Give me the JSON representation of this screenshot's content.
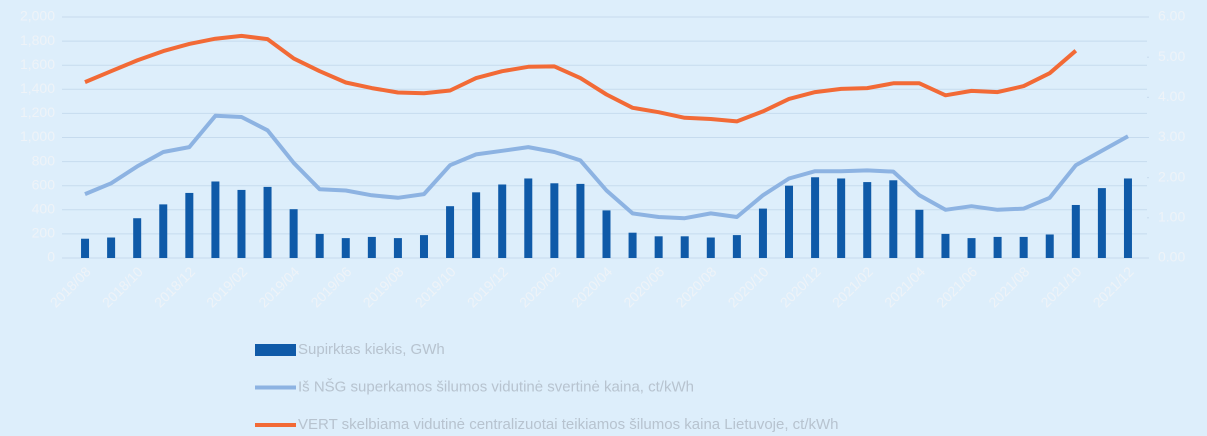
{
  "chart_data": {
    "type": "bar_line",
    "categories": [
      "2018/08",
      null,
      "2018/10",
      null,
      "2018/12",
      null,
      "2019/02",
      null,
      "2019/04",
      null,
      "2019/06",
      null,
      "2019/08",
      null,
      "2019/10",
      null,
      "2019/12",
      null,
      "2020/02",
      null,
      "2020/04",
      null,
      "2020/06",
      null,
      "2020/08",
      null,
      "2020/10",
      null,
      "2020/12",
      null,
      "2021/02",
      null,
      "2021/04",
      null,
      "2021/06",
      null,
      "2021/08",
      null,
      "2021/10",
      null,
      "2021/12"
    ],
    "series": [
      {
        "name": "Supirktas kiekis, GWh",
        "type": "bar",
        "color": "#0f5aa8",
        "axis": "y",
        "values": [
          160,
          170,
          330,
          445,
          540,
          635,
          565,
          590,
          405,
          200,
          165,
          175,
          165,
          190,
          430,
          545,
          610,
          660,
          620,
          615,
          395,
          210,
          180,
          180,
          170,
          190,
          410,
          600,
          670,
          660,
          630,
          645,
          400,
          200,
          165,
          175,
          175,
          195,
          440,
          580,
          660
        ]
      },
      {
        "name": "Iš NŠG superkamos šilumos vidutinė svertinė kaina, ct/kWh",
        "type": "line",
        "color": "#8db3e2",
        "axis": "y2",
        "values": [
          1.59,
          1.86,
          2.28,
          2.64,
          2.76,
          3.54,
          3.51,
          3.18,
          2.37,
          1.71,
          1.68,
          1.56,
          1.5,
          1.59,
          2.31,
          2.58,
          2.67,
          2.76,
          2.64,
          2.43,
          1.68,
          1.11,
          1.02,
          0.99,
          1.11,
          1.02,
          1.56,
          1.98,
          2.16,
          2.16,
          2.18,
          2.15,
          1.56,
          1.2,
          1.29,
          1.2,
          1.23,
          1.5,
          2.31,
          2.67,
          3.03
        ]
      },
      {
        "name": "VERT skelbiama vidutinė centralizuotai teikiamos šilumos kaina Lietuvoje, ct/kWh",
        "type": "line",
        "color": "#f26a36",
        "axis": "y2",
        "values": [
          4.38,
          4.65,
          4.92,
          5.15,
          5.33,
          5.46,
          5.53,
          5.45,
          4.97,
          4.65,
          4.37,
          4.23,
          4.12,
          4.1,
          4.17,
          4.48,
          4.65,
          4.76,
          4.77,
          4.48,
          4.07,
          3.74,
          3.63,
          3.49,
          3.46,
          3.4,
          3.65,
          3.96,
          4.13,
          4.21,
          4.23,
          4.35,
          4.35,
          4.05,
          4.16,
          4.13,
          4.28,
          4.6,
          5.16,
          null,
          null
        ]
      }
    ],
    "ylim": [
      0,
      2000
    ],
    "yticks": [
      0,
      200,
      400,
      600,
      800,
      {
        "value": 1000,
        "label": "1,000"
      },
      {
        "value": 1200,
        "label": "1,200"
      },
      {
        "value": 1400,
        "label": "1,400"
      },
      {
        "value": 1600,
        "label": "1,600"
      },
      {
        "value": 1800,
        "label": "1,800"
      },
      {
        "value": 2000,
        "label": "2,000"
      }
    ],
    "y2lim": [
      0,
      6
    ],
    "y2ticks": [
      {
        "value": 0,
        "label": "0.00"
      },
      {
        "value": 1,
        "label": "1.00"
      },
      {
        "value": 2,
        "label": "2.00"
      },
      {
        "value": 3,
        "label": "3.00"
      },
      {
        "value": 4,
        "label": "4.00"
      },
      {
        "value": 5,
        "label": "5.00"
      },
      {
        "value": 6,
        "label": "6.00"
      }
    ],
    "grid": true,
    "legend": "bottom"
  }
}
